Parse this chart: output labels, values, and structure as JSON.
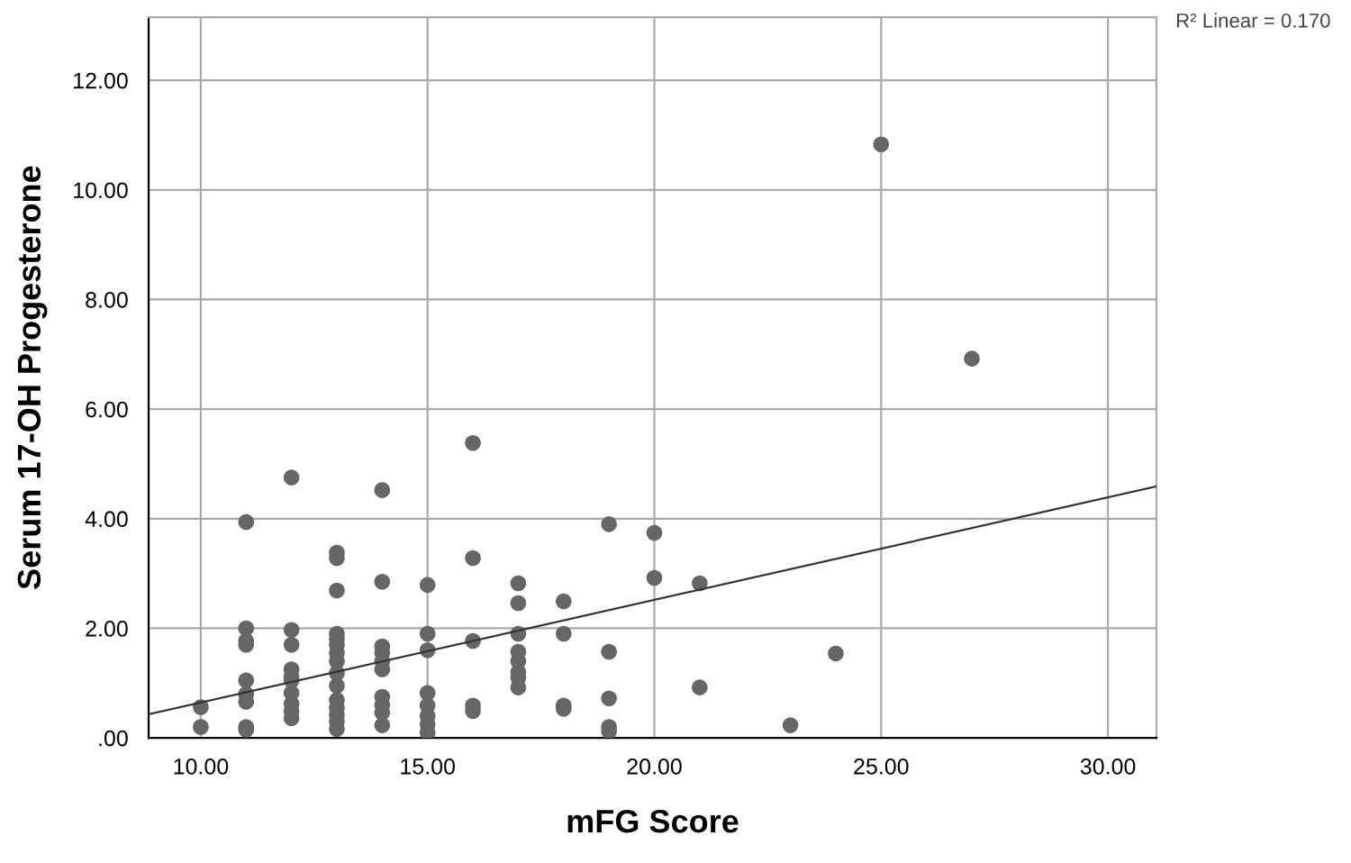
{
  "chart_data": {
    "type": "scatter",
    "xlabel": "mFG Score",
    "ylabel": "Serum 17-OH Progesterone",
    "annotations": [
      "R² Linear = 0.170"
    ],
    "series": [
      {
        "color": "#666666",
        "marker": "circle",
        "x": [
          10,
          10,
          11,
          11,
          11,
          11,
          11,
          11,
          11,
          11,
          11,
          12,
          12,
          12,
          12,
          12,
          12,
          12,
          12,
          12,
          12,
          13,
          13,
          13,
          13,
          13,
          13,
          13,
          13,
          13,
          13,
          13,
          13,
          13,
          13,
          13,
          14,
          14,
          14,
          14,
          14,
          14,
          14,
          14,
          14,
          14,
          15,
          15,
          15,
          15,
          15,
          15,
          15,
          15,
          16,
          16,
          16,
          16,
          16,
          17,
          17,
          17,
          17,
          17,
          17,
          17,
          17,
          18,
          18,
          18,
          18,
          19,
          19,
          19,
          19,
          19,
          20,
          20,
          21,
          21,
          23,
          24,
          25,
          27
        ],
        "values": [
          0.56,
          0.2,
          3.94,
          2.0,
          1.77,
          1.7,
          1.05,
          0.8,
          0.66,
          0.2,
          0.15,
          4.75,
          1.97,
          1.7,
          1.25,
          1.12,
          1.05,
          0.82,
          0.62,
          0.49,
          0.36,
          3.38,
          3.28,
          2.69,
          1.9,
          1.8,
          1.7,
          1.55,
          1.4,
          1.18,
          0.95,
          0.69,
          0.55,
          0.42,
          0.3,
          0.16,
          4.52,
          2.85,
          1.67,
          1.55,
          1.4,
          1.25,
          0.75,
          0.6,
          0.46,
          0.23,
          2.79,
          1.9,
          1.6,
          0.82,
          0.59,
          0.4,
          0.25,
          0.1,
          5.38,
          3.28,
          1.77,
          0.59,
          0.49,
          2.82,
          2.46,
          1.9,
          1.57,
          1.4,
          1.2,
          1.1,
          0.92,
          2.49,
          1.9,
          0.59,
          0.53,
          3.9,
          1.57,
          0.72,
          0.2,
          0.12,
          3.74,
          2.92,
          2.82,
          0.92,
          0.23,
          1.54,
          10.83,
          6.92
        ]
      },
      {
        "type": "line",
        "color": "#333333",
        "line_style": "solid",
        "marker": "none",
        "x": [
          8.85,
          31.07
        ],
        "values": [
          0.43,
          4.59
        ]
      }
    ],
    "xlim": [
      8.85,
      31.07
    ],
    "ylim": [
      0,
      13.15
    ],
    "xticks": [
      {
        "value": 10,
        "label": "10.00"
      },
      {
        "value": 15,
        "label": "15.00"
      },
      {
        "value": 20,
        "label": "20.00"
      },
      {
        "value": 25,
        "label": "25.00"
      },
      {
        "value": 30,
        "label": "30.00"
      }
    ],
    "yticks": [
      {
        "value": 0,
        "label": ".00"
      },
      {
        "value": 2,
        "label": "2.00"
      },
      {
        "value": 4,
        "label": "4.00"
      },
      {
        "value": 6,
        "label": "6.00"
      },
      {
        "value": 8,
        "label": "8.00"
      },
      {
        "value": 10,
        "label": "10.00"
      },
      {
        "value": 12,
        "label": "12.00"
      }
    ],
    "grid": true
  }
}
